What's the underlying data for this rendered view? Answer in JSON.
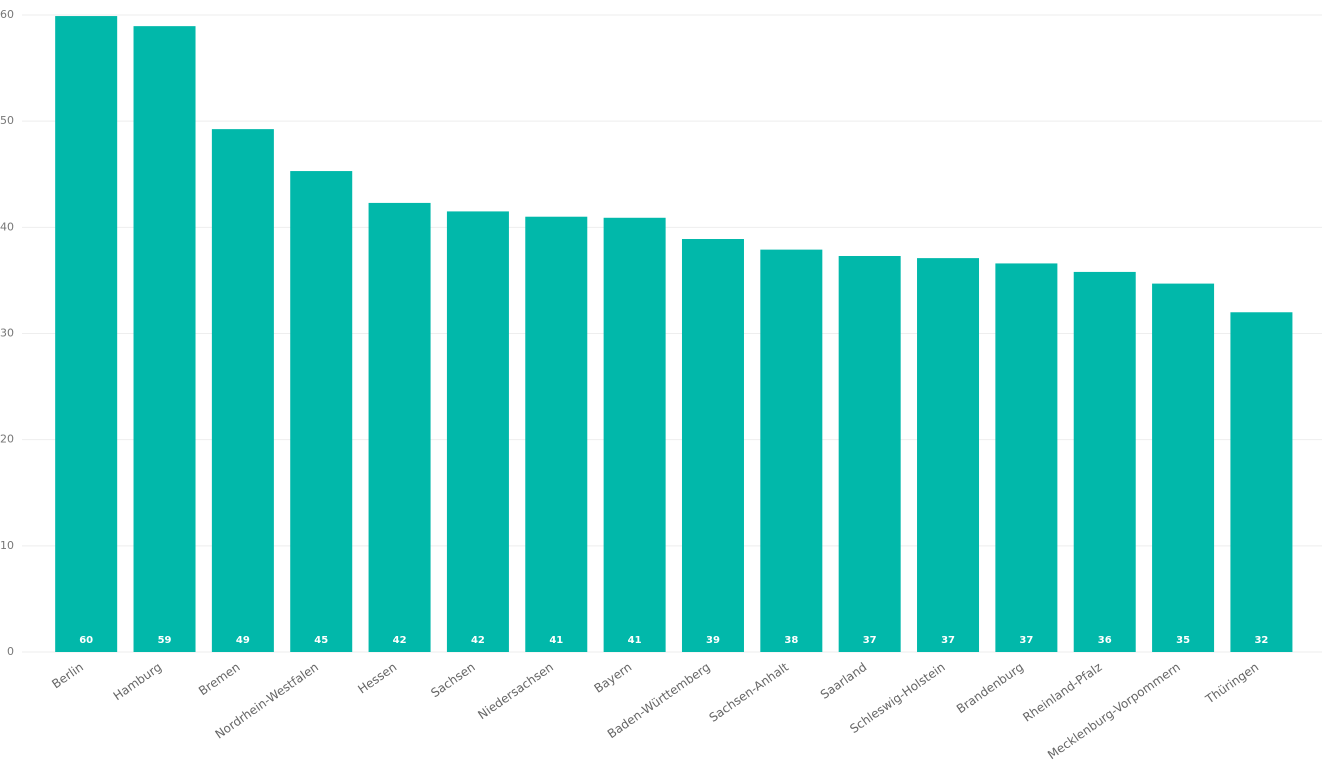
{
  "chart_data": {
    "type": "bar",
    "categories": [
      "Berlin",
      "Hamburg",
      "Bremen",
      "Nordrhein-Westfalen",
      "Hessen",
      "Sachsen",
      "Niedersachsen",
      "Bayern",
      "Baden-Württemberg",
      "Sachsen-Anhalt",
      "Saarland",
      "Schleswig-Holstein",
      "Brandenburg",
      "Rheinland-Pfalz",
      "Mecklenburg-Vorpommern",
      "Thüringen"
    ],
    "values": [
      59.9,
      58.95,
      49.25,
      45.3,
      42.3,
      41.5,
      41.0,
      40.9,
      38.9,
      37.9,
      37.3,
      37.1,
      36.6,
      35.8,
      34.7,
      32.0
    ],
    "value_labels": [
      "60",
      "59",
      "49",
      "45",
      "42",
      "42",
      "41",
      "41",
      "39",
      "38",
      "37",
      "37",
      "37",
      "36",
      "35",
      "32"
    ],
    "color": "#01b8aa",
    "ylim": [
      0,
      60
    ],
    "yticks": [
      0,
      10,
      20,
      30,
      40,
      50,
      60
    ],
    "grid": true
  }
}
